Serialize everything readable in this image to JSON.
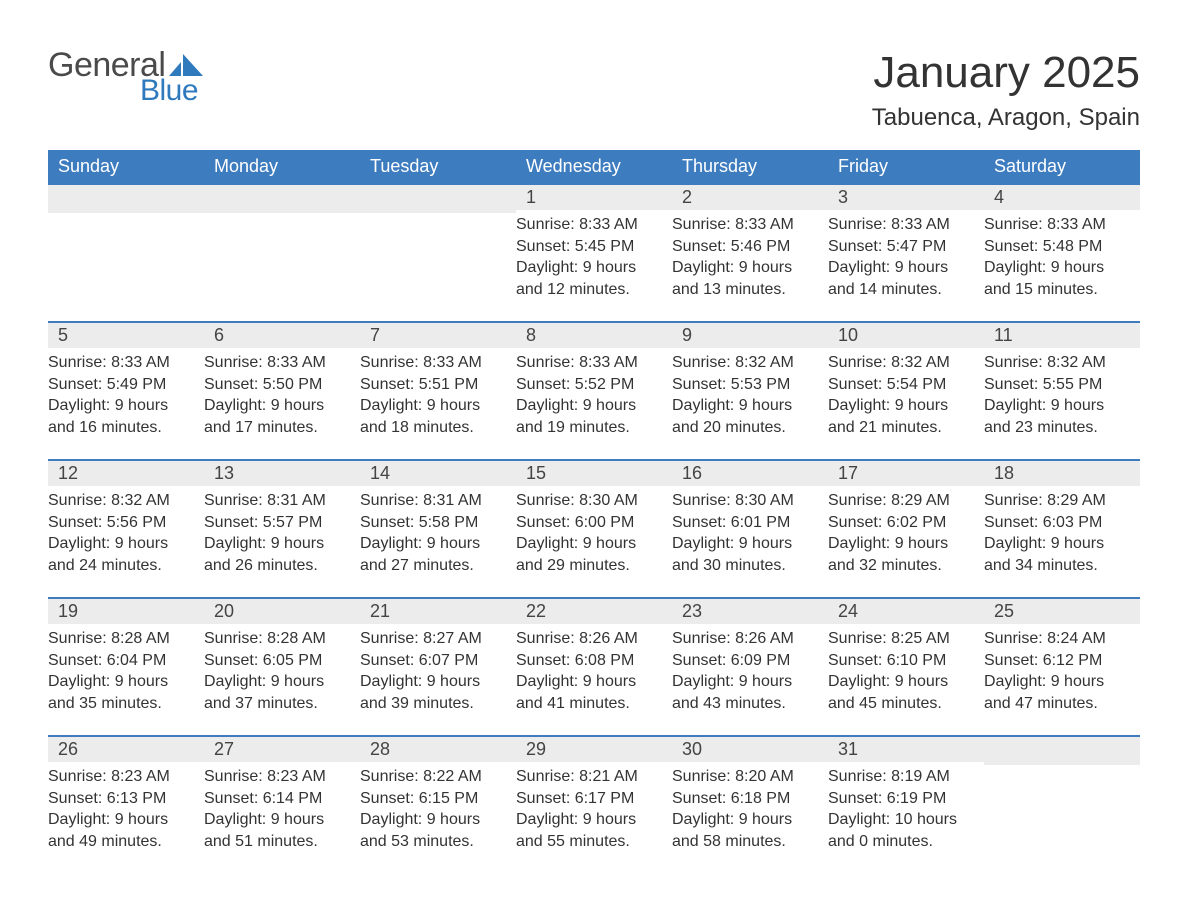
{
  "logo": {
    "word1": "General",
    "word2": "Blue",
    "text_color": "#4a4a4a",
    "accent_color": "#2f79bd"
  },
  "title": "January 2025",
  "location": "Tabuenca, Aragon, Spain",
  "colors": {
    "header_bg": "#3d7cbf",
    "header_text": "#ffffff",
    "daynum_bg": "#ececec",
    "border": "#3d7cbf",
    "body_text": "#333333",
    "page_bg": "#ffffff"
  },
  "typography": {
    "title_fontsize": 44,
    "location_fontsize": 24,
    "header_fontsize": 18,
    "daynum_fontsize": 18,
    "body_fontsize": 16
  },
  "weekdays": [
    "Sunday",
    "Monday",
    "Tuesday",
    "Wednesday",
    "Thursday",
    "Friday",
    "Saturday"
  ],
  "weeks": [
    [
      null,
      null,
      null,
      {
        "n": "1",
        "sr": "8:33 AM",
        "ss": "5:45 PM",
        "dh": "9",
        "dm": "12"
      },
      {
        "n": "2",
        "sr": "8:33 AM",
        "ss": "5:46 PM",
        "dh": "9",
        "dm": "13"
      },
      {
        "n": "3",
        "sr": "8:33 AM",
        "ss": "5:47 PM",
        "dh": "9",
        "dm": "14"
      },
      {
        "n": "4",
        "sr": "8:33 AM",
        "ss": "5:48 PM",
        "dh": "9",
        "dm": "15"
      }
    ],
    [
      {
        "n": "5",
        "sr": "8:33 AM",
        "ss": "5:49 PM",
        "dh": "9",
        "dm": "16"
      },
      {
        "n": "6",
        "sr": "8:33 AM",
        "ss": "5:50 PM",
        "dh": "9",
        "dm": "17"
      },
      {
        "n": "7",
        "sr": "8:33 AM",
        "ss": "5:51 PM",
        "dh": "9",
        "dm": "18"
      },
      {
        "n": "8",
        "sr": "8:33 AM",
        "ss": "5:52 PM",
        "dh": "9",
        "dm": "19"
      },
      {
        "n": "9",
        "sr": "8:32 AM",
        "ss": "5:53 PM",
        "dh": "9",
        "dm": "20"
      },
      {
        "n": "10",
        "sr": "8:32 AM",
        "ss": "5:54 PM",
        "dh": "9",
        "dm": "21"
      },
      {
        "n": "11",
        "sr": "8:32 AM",
        "ss": "5:55 PM",
        "dh": "9",
        "dm": "23"
      }
    ],
    [
      {
        "n": "12",
        "sr": "8:32 AM",
        "ss": "5:56 PM",
        "dh": "9",
        "dm": "24"
      },
      {
        "n": "13",
        "sr": "8:31 AM",
        "ss": "5:57 PM",
        "dh": "9",
        "dm": "26"
      },
      {
        "n": "14",
        "sr": "8:31 AM",
        "ss": "5:58 PM",
        "dh": "9",
        "dm": "27"
      },
      {
        "n": "15",
        "sr": "8:30 AM",
        "ss": "6:00 PM",
        "dh": "9",
        "dm": "29"
      },
      {
        "n": "16",
        "sr": "8:30 AM",
        "ss": "6:01 PM",
        "dh": "9",
        "dm": "30"
      },
      {
        "n": "17",
        "sr": "8:29 AM",
        "ss": "6:02 PM",
        "dh": "9",
        "dm": "32"
      },
      {
        "n": "18",
        "sr": "8:29 AM",
        "ss": "6:03 PM",
        "dh": "9",
        "dm": "34"
      }
    ],
    [
      {
        "n": "19",
        "sr": "8:28 AM",
        "ss": "6:04 PM",
        "dh": "9",
        "dm": "35"
      },
      {
        "n": "20",
        "sr": "8:28 AM",
        "ss": "6:05 PM",
        "dh": "9",
        "dm": "37"
      },
      {
        "n": "21",
        "sr": "8:27 AM",
        "ss": "6:07 PM",
        "dh": "9",
        "dm": "39"
      },
      {
        "n": "22",
        "sr": "8:26 AM",
        "ss": "6:08 PM",
        "dh": "9",
        "dm": "41"
      },
      {
        "n": "23",
        "sr": "8:26 AM",
        "ss": "6:09 PM",
        "dh": "9",
        "dm": "43"
      },
      {
        "n": "24",
        "sr": "8:25 AM",
        "ss": "6:10 PM",
        "dh": "9",
        "dm": "45"
      },
      {
        "n": "25",
        "sr": "8:24 AM",
        "ss": "6:12 PM",
        "dh": "9",
        "dm": "47"
      }
    ],
    [
      {
        "n": "26",
        "sr": "8:23 AM",
        "ss": "6:13 PM",
        "dh": "9",
        "dm": "49"
      },
      {
        "n": "27",
        "sr": "8:23 AM",
        "ss": "6:14 PM",
        "dh": "9",
        "dm": "51"
      },
      {
        "n": "28",
        "sr": "8:22 AM",
        "ss": "6:15 PM",
        "dh": "9",
        "dm": "53"
      },
      {
        "n": "29",
        "sr": "8:21 AM",
        "ss": "6:17 PM",
        "dh": "9",
        "dm": "55"
      },
      {
        "n": "30",
        "sr": "8:20 AM",
        "ss": "6:18 PM",
        "dh": "9",
        "dm": "58"
      },
      {
        "n": "31",
        "sr": "8:19 AM",
        "ss": "6:19 PM",
        "dh": "10",
        "dm": "0"
      },
      null
    ]
  ],
  "labels": {
    "sunrise": "Sunrise: ",
    "sunset": "Sunset: ",
    "daylight_prefix": "Daylight: ",
    "hours_word": " hours",
    "and_word": "and ",
    "minutes_word": " minutes."
  }
}
